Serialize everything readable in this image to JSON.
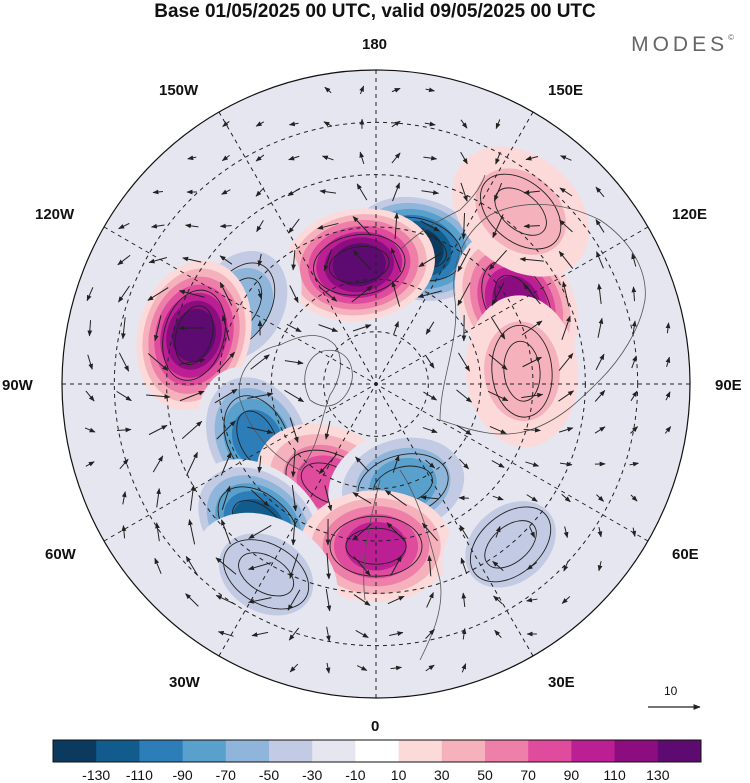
{
  "title": "Base 01/05/2025 00 UTC, valid 09/05/2025 00 UTC",
  "brand": "MODES",
  "brand_mark": "©",
  "longitude_labels": {
    "lon_180": "180",
    "lon_150e": "150E",
    "lon_120e": "120E",
    "lon_90e": "90E",
    "lon_60e": "60E",
    "lon_30e": "30E",
    "lon_0": "0",
    "lon_30w": "30W",
    "lon_60w": "60W",
    "lon_90w": "90W",
    "lon_120w": "120W",
    "lon_150w": "150W"
  },
  "vector_scale_label": "10",
  "colorbar": {
    "tick_labels": [
      "-130",
      "-110",
      "-90",
      "-70",
      "-50",
      "-30",
      "-10",
      "10",
      "30",
      "50",
      "70",
      "90",
      "110",
      "130"
    ],
    "colors": [
      "#0c3a5e",
      "#115c8c",
      "#2c7db8",
      "#5aa0cc",
      "#8fb6da",
      "#c2cbe3",
      "#e6e6f0",
      "#ffffff",
      "#fbdad9",
      "#f5b2bc",
      "#ee7fa8",
      "#df4b9d",
      "#bb1f93",
      "#8c0d80",
      "#5d0b70"
    ]
  },
  "anomalies": [
    {
      "sign": "neg",
      "level": 6,
      "lon": 163,
      "colat": 27
    },
    {
      "sign": "pos",
      "level": 6,
      "lon": -172,
      "colat": 23
    },
    {
      "sign": "pos",
      "level": 5,
      "lon": 120,
      "colat": 31
    },
    {
      "sign": "neg",
      "level": 2,
      "lon": -120,
      "colat": 30
    },
    {
      "sign": "pos",
      "level": 6,
      "lon": -105,
      "colat": 36
    },
    {
      "sign": "neg",
      "level": 4,
      "lon": -65,
      "colat": 25
    },
    {
      "sign": "pos",
      "level": 3,
      "lon": -25,
      "colat": 21
    },
    {
      "sign": "neg",
      "level": 3,
      "lon": 15,
      "colat": 20
    },
    {
      "sign": "neg",
      "level": 5,
      "lon": -40,
      "colat": 35
    },
    {
      "sign": "pos",
      "level": 4,
      "lon": 0,
      "colat": 31
    },
    {
      "sign": "neg",
      "level": 1,
      "lon": 40,
      "colat": 40
    },
    {
      "sign": "neg",
      "level": 1,
      "lon": -30,
      "colat": 42
    },
    {
      "sign": "pos",
      "level": 1,
      "lon": 140,
      "colat": 43
    },
    {
      "sign": "pos",
      "level": 1,
      "lon": 95,
      "colat": 28
    }
  ]
}
